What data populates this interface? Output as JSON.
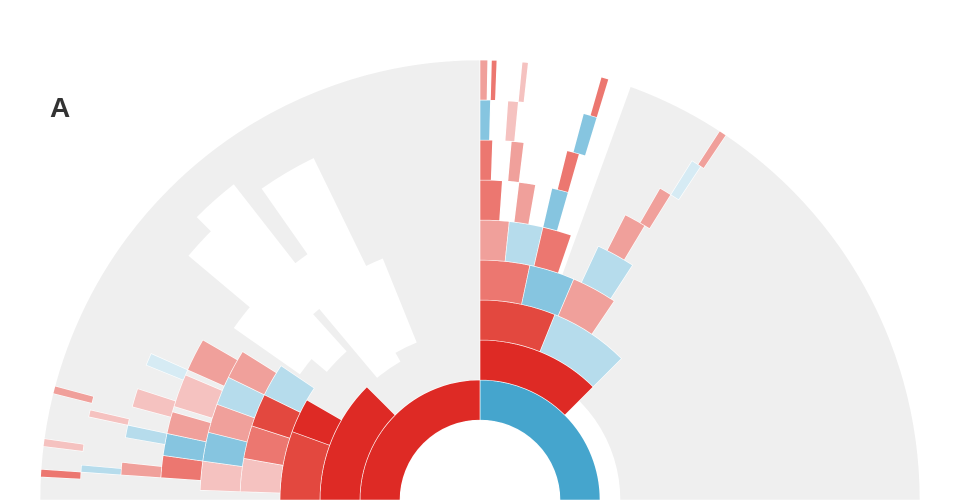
{
  "figure": {
    "panel_label": "A"
  },
  "colors": {
    "background_ring": "#efefef",
    "gap": "#ffffff",
    "red_dark": "#de2a25",
    "red_mid": "#e3483f",
    "red_light": "#ec7770",
    "salmon": "#f0a09b",
    "pink": "#f5c2c0",
    "blue_dark": "#45a5cd",
    "blue_mid": "#86c5e0",
    "blue_light": "#b6dcec",
    "blue_pale": "#d6ebf4"
  },
  "legend_visible": false
}
